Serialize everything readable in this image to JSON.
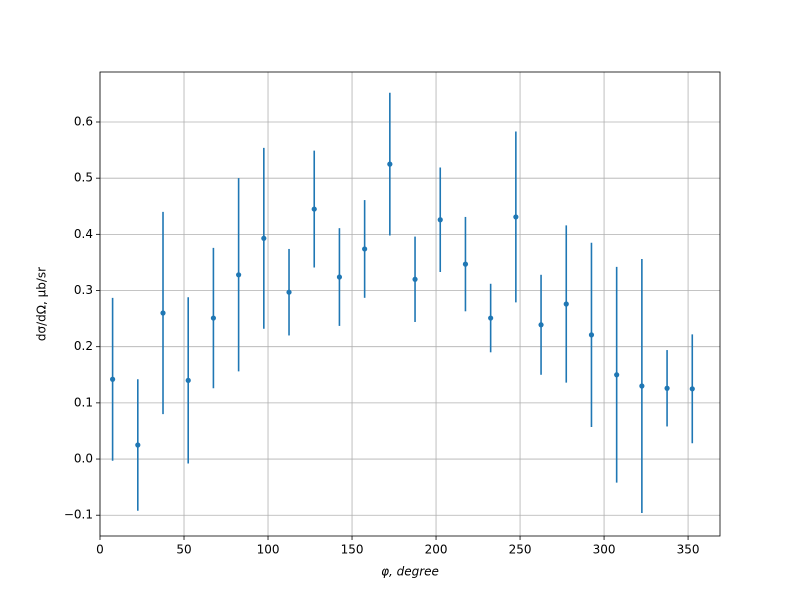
{
  "chart_data": {
    "type": "errorbar",
    "x_label": "φ, degree",
    "y_label": "dσ/dΩ, μb/sr",
    "color": "#1f77b4",
    "grid": true,
    "x": [
      7.5,
      22.5,
      37.5,
      52.5,
      67.5,
      82.5,
      97.5,
      112.5,
      127.5,
      142.5,
      157.5,
      172.5,
      187.5,
      202.5,
      217.5,
      232.5,
      247.5,
      262.5,
      277.5,
      292.5,
      307.5,
      322.5,
      337.5,
      352.5
    ],
    "values": [
      0.142,
      0.025,
      0.26,
      0.14,
      0.251,
      0.328,
      0.393,
      0.297,
      0.445,
      0.324,
      0.374,
      0.525,
      0.32,
      0.426,
      0.347,
      0.251,
      0.431,
      0.239,
      0.276,
      0.221,
      0.15,
      0.13,
      0.126,
      0.125
    ],
    "errors": [
      0.145,
      0.117,
      0.18,
      0.148,
      0.125,
      0.172,
      0.161,
      0.077,
      0.104,
      0.087,
      0.087,
      0.127,
      0.076,
      0.093,
      0.084,
      0.061,
      0.152,
      0.089,
      0.14,
      0.164,
      0.192,
      0.226,
      0.068,
      0.097
    ],
    "xlim": [
      0,
      369
    ],
    "ylim": [
      -0.137,
      0.689
    ],
    "xticks": [
      0,
      50,
      100,
      150,
      200,
      250,
      300,
      350
    ],
    "yticks": [
      {
        "value": -0.1,
        "label": "−0.1"
      },
      {
        "value": 0,
        "label": "0.0"
      },
      0.1,
      0.2,
      0.3,
      0.4,
      0.5,
      0.6
    ]
  }
}
